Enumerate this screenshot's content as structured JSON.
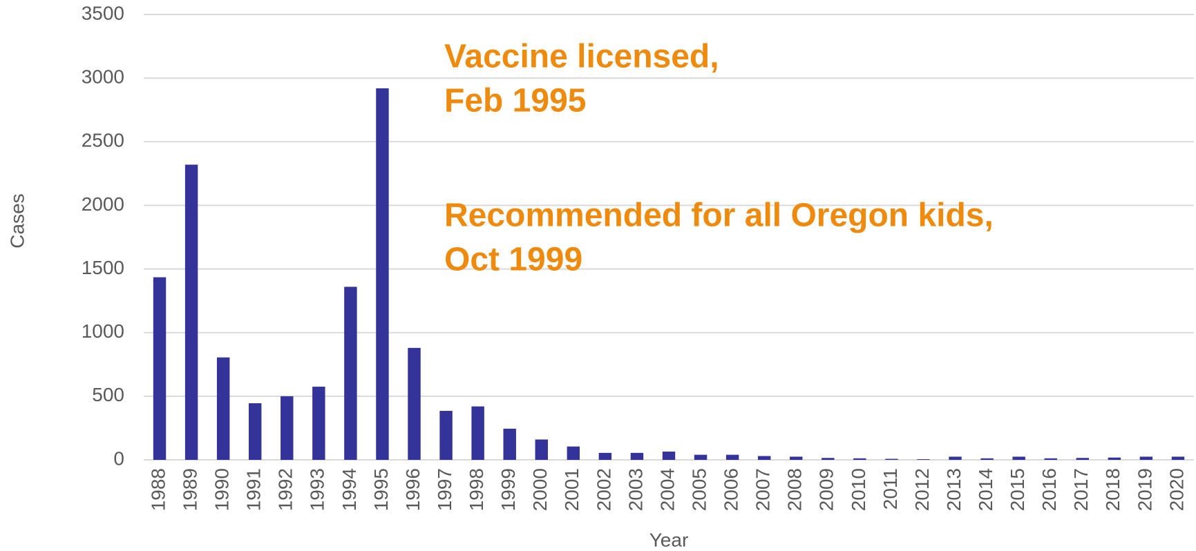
{
  "chart_data": {
    "type": "bar",
    "x_label": "Year",
    "y_label": "Cases",
    "annotations": [
      "Vaccine licensed,",
      "Feb 1995",
      "Recommended for all Oregon kids,",
      "Oct 1999"
    ],
    "categories": [
      "1988",
      "1989",
      "1990",
      "1991",
      "1992",
      "1993",
      "1994",
      "1995",
      "1996",
      "1997",
      "1998",
      "1999",
      "2000",
      "2001",
      "2002",
      "2003",
      "2004",
      "2005",
      "2006",
      "2007",
      "2008",
      "2009",
      "2010",
      "2011",
      "2012",
      "2013",
      "2014",
      "2015",
      "2016",
      "2017",
      "2018",
      "2019",
      "2020"
    ],
    "values": [
      1435,
      2320,
      805,
      445,
      500,
      575,
      1360,
      2920,
      880,
      385,
      420,
      245,
      160,
      105,
      55,
      55,
      65,
      40,
      40,
      30,
      25,
      15,
      12,
      8,
      5,
      25,
      12,
      25,
      12,
      15,
      18,
      25,
      25
    ],
    "color": "#333399",
    "ylim": [
      0,
      3500
    ],
    "yticks": [
      0,
      500,
      1000,
      1500,
      2000,
      2500,
      3000,
      3500
    ],
    "grid": true
  }
}
